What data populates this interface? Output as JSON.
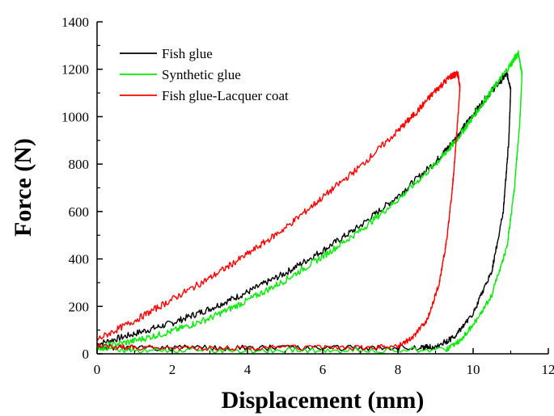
{
  "chart_data": {
    "type": "line",
    "xlabel": "Displacement (mm)",
    "ylabel": "Force (N)",
    "xlim": [
      0,
      12
    ],
    "ylim": [
      0,
      1400
    ],
    "xticks": [
      0,
      2,
      4,
      6,
      8,
      10,
      12
    ],
    "yticks": [
      0,
      200,
      400,
      600,
      800,
      1000,
      1200,
      1400
    ],
    "legend_position": "top-left",
    "series": [
      {
        "name": "Fish glue",
        "color": "#000000",
        "loading": [
          [
            0,
            40
          ],
          [
            1,
            85
          ],
          [
            2,
            130
          ],
          [
            3,
            190
          ],
          [
            4,
            260
          ],
          [
            5,
            340
          ],
          [
            6,
            435
          ],
          [
            7,
            540
          ],
          [
            8,
            665
          ],
          [
            9,
            810
          ],
          [
            9.5,
            900
          ],
          [
            10,
            1010
          ],
          [
            10.5,
            1110
          ],
          [
            10.9,
            1180
          ]
        ],
        "unloading": [
          [
            10.9,
            1180
          ],
          [
            11.0,
            1120
          ],
          [
            10.95,
            900
          ],
          [
            10.8,
            600
          ],
          [
            10.5,
            350
          ],
          [
            10,
            170
          ],
          [
            9.5,
            70
          ],
          [
            9.0,
            30
          ],
          [
            8.6,
            25
          ],
          [
            7,
            25
          ],
          [
            5,
            25
          ],
          [
            3,
            25
          ],
          [
            1,
            25
          ],
          [
            0,
            30
          ]
        ]
      },
      {
        "name": "Synthetic glue",
        "color": "#00ee00",
        "loading": [
          [
            0,
            25
          ],
          [
            1,
            55
          ],
          [
            2,
            95
          ],
          [
            3,
            150
          ],
          [
            4,
            225
          ],
          [
            5,
            310
          ],
          [
            6,
            410
          ],
          [
            7,
            520
          ],
          [
            8,
            650
          ],
          [
            9,
            800
          ],
          [
            9.5,
            890
          ],
          [
            10,
            1000
          ],
          [
            10.5,
            1110
          ],
          [
            11,
            1220
          ],
          [
            11.2,
            1270
          ]
        ],
        "unloading": [
          [
            11.2,
            1270
          ],
          [
            11.3,
            1180
          ],
          [
            11.25,
            1000
          ],
          [
            11.1,
            700
          ],
          [
            10.9,
            450
          ],
          [
            10.5,
            250
          ],
          [
            10,
            120
          ],
          [
            9.6,
            50
          ],
          [
            9.3,
            20
          ],
          [
            7,
            15
          ],
          [
            5,
            15
          ],
          [
            3,
            15
          ],
          [
            1,
            15
          ],
          [
            0,
            20
          ]
        ]
      },
      {
        "name": "Fish glue-Lacquer coat",
        "color": "#ff0000",
        "loading": [
          [
            0,
            60
          ],
          [
            1,
            140
          ],
          [
            2,
            230
          ],
          [
            3,
            320
          ],
          [
            4,
            420
          ],
          [
            5,
            530
          ],
          [
            6,
            660
          ],
          [
            7,
            790
          ],
          [
            8,
            940
          ],
          [
            8.5,
            1020
          ],
          [
            9,
            1110
          ],
          [
            9.4,
            1170
          ],
          [
            9.6,
            1180
          ]
        ],
        "unloading": [
          [
            9.6,
            1180
          ],
          [
            9.65,
            1120
          ],
          [
            9.55,
            900
          ],
          [
            9.45,
            700
          ],
          [
            9.3,
            480
          ],
          [
            9.1,
            300
          ],
          [
            8.8,
            150
          ],
          [
            8.4,
            70
          ],
          [
            8,
            30
          ],
          [
            7,
            25
          ],
          [
            5,
            25
          ],
          [
            3,
            25
          ],
          [
            1,
            25
          ],
          [
            0,
            35
          ]
        ]
      }
    ]
  }
}
